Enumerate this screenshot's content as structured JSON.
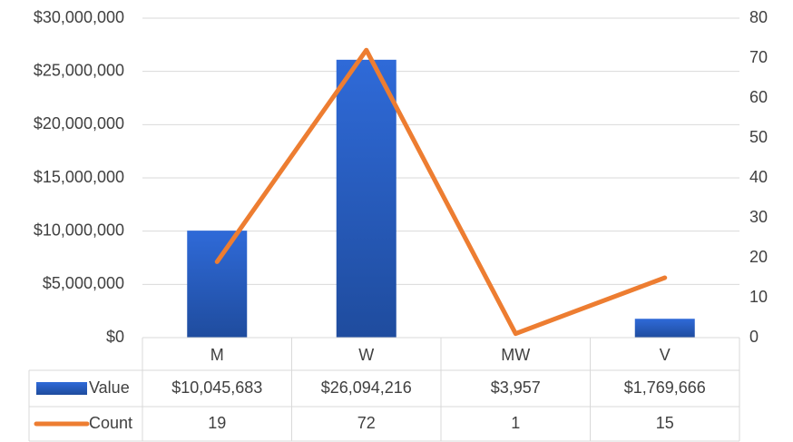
{
  "chart_data": {
    "type": "bar-line-combo",
    "categories": [
      "M",
      "W",
      "MW",
      "V"
    ],
    "series": [
      {
        "name": "Value",
        "type": "bar",
        "color": "#2a5cc4",
        "axis": "y",
        "values": [
          10045683,
          26094216,
          3957,
          1769666
        ],
        "value_labels": [
          "$10,045,683",
          "$26,094,216",
          "$3,957",
          "$1,769,666"
        ]
      },
      {
        "name": "Count",
        "type": "line",
        "color": "#ed7d31",
        "axis": "y2",
        "values": [
          19,
          72,
          1,
          15
        ]
      }
    ],
    "ylim": [
      0,
      30000000
    ],
    "yticks": [
      {
        "value": 0,
        "label": "$0"
      },
      {
        "value": 5000000,
        "label": "$5,000,000"
      },
      {
        "value": 10000000,
        "label": "$10,000,000"
      },
      {
        "value": 15000000,
        "label": "$15,000,000"
      },
      {
        "value": 20000000,
        "label": "$20,000,000"
      },
      {
        "value": 25000000,
        "label": "$25,000,000"
      },
      {
        "value": 30000000,
        "label": "$30,000,000"
      }
    ],
    "y2lim": [
      0,
      80
    ],
    "y2ticks": [
      0,
      10,
      20,
      30,
      40,
      50,
      60,
      70,
      80
    ],
    "grid": true
  }
}
